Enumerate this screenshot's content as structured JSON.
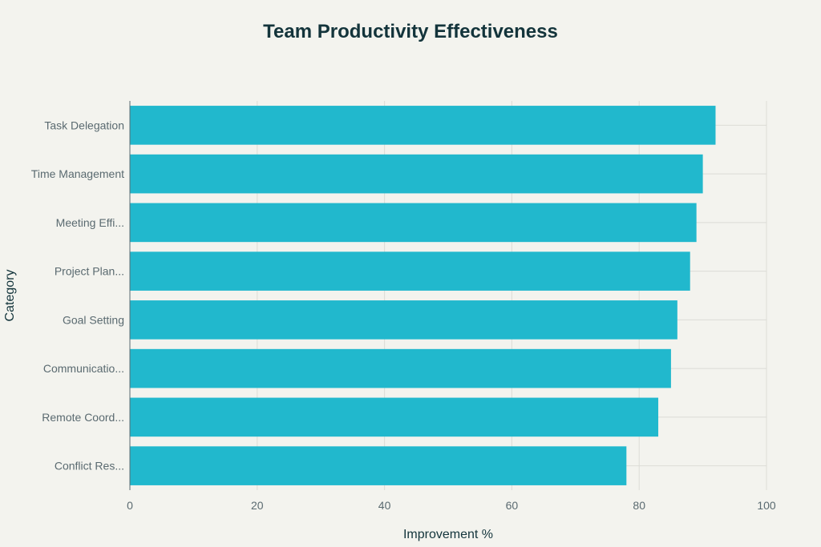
{
  "chart_data": {
    "type": "bar",
    "orientation": "horizontal",
    "title": "Team Productivity Effectiveness",
    "xlabel": "Improvement %",
    "ylabel": "Category",
    "categories": [
      "Task Delegation",
      "Time Management",
      "Meeting Effi...",
      "Project Plan...",
      "Goal Setting",
      "Communicatio...",
      "Remote Coord...",
      "Conflict Res..."
    ],
    "values": [
      92,
      90,
      89,
      88,
      86,
      85,
      83,
      78
    ],
    "xlim": [
      0,
      100
    ],
    "xticks": [
      0,
      20,
      40,
      60,
      80,
      100
    ],
    "grid": true,
    "bar_color": "#21b8cd",
    "grid_color": "#dcdcd6"
  }
}
